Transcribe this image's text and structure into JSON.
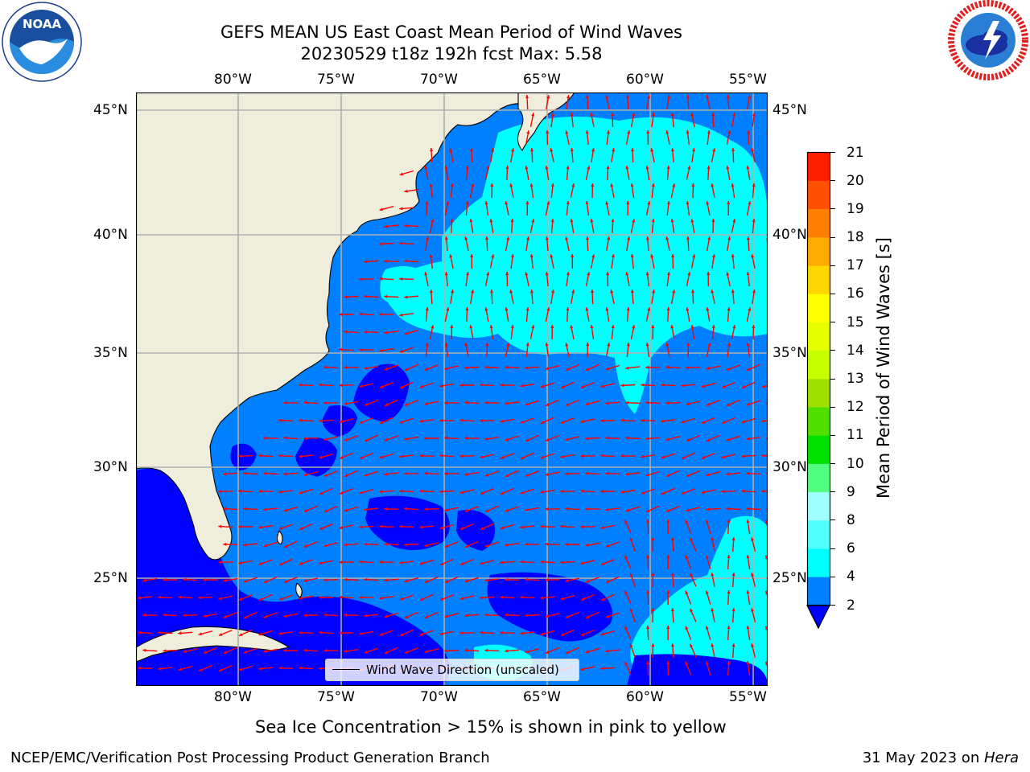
{
  "header": {
    "title_line1": "GEFS MEAN US East Coast Mean Period of Wind Waves",
    "title_line2": "20230529 t18z 192h fcst   Max: 5.58"
  },
  "logos": {
    "left": {
      "name": "noaa-logo",
      "text": "NOAA",
      "ring_text": "NATIONAL OCEANIC AND ATMOSPHERIC ADMINISTRATION · U.S. DEPARTMENT OF COMMERCE"
    },
    "right": {
      "name": "nws-logo",
      "ring_text": "NATIONAL WEATHER SERVICE"
    }
  },
  "map": {
    "lon_ticks": [
      "80°W",
      "75°W",
      "70°W",
      "65°W",
      "60°W",
      "55°W"
    ],
    "lat_ticks": [
      "45°N",
      "40°N",
      "35°N",
      "30°N",
      "25°N"
    ],
    "colors": {
      "land": "#efeedc",
      "ocean_dark": "#0000ff",
      "ocean_mid": "#0080ff",
      "ocean_light": "#00ffff",
      "arrow": "#ff0000",
      "grid": "#b0b0b0"
    },
    "legend_label": "Wind Wave Direction (unscaled)"
  },
  "colorbar": {
    "label": "Mean Period of Wind Waves [s]",
    "ticks": [
      "2",
      "4",
      "6",
      "8",
      "9",
      "10",
      "11",
      "12",
      "13",
      "14",
      "15",
      "16",
      "17",
      "18",
      "19",
      "20",
      "21"
    ],
    "colors": [
      "#0080ff",
      "#00ffff",
      "#50ffff",
      "#a0ffff",
      "#50ff80",
      "#00e000",
      "#50e000",
      "#a0e000",
      "#c8ff00",
      "#e6ff00",
      "#ffff00",
      "#ffd700",
      "#ffaa00",
      "#ff8000",
      "#ff5000",
      "#ff2000"
    ],
    "under_color": "#0000ff"
  },
  "notes": {
    "sea_ice": "Sea Ice Concentration > 15% is shown in pink to yellow"
  },
  "footer": {
    "left": "NCEP/EMC/Verification Post Processing Product Generation Branch",
    "date": "31 May 2023 on ",
    "machine": "Hera"
  }
}
